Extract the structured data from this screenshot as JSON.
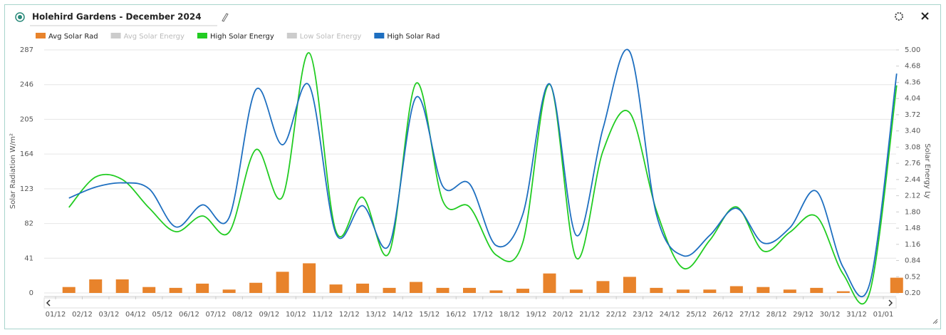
{
  "chart_data": {
    "type": "bar-line",
    "title": "Holehird Gardens - December 2024",
    "y_label": "Solar Radiation W/m²",
    "y2_label": "Solar Energy Ly",
    "categories": [
      "01/12",
      "02/12",
      "03/12",
      "04/12",
      "05/12",
      "06/12",
      "07/12",
      "08/12",
      "09/12",
      "10/12",
      "11/12",
      "12/12",
      "13/12",
      "14/12",
      "15/12",
      "16/12",
      "17/12",
      "18/12",
      "19/12",
      "20/12",
      "21/12",
      "22/12",
      "23/12",
      "24/12",
      "25/12",
      "26/12",
      "27/12",
      "28/12",
      "29/12",
      "30/12",
      "31/12",
      "01/01"
    ],
    "series": [
      {
        "name": "Avg Solar Rad",
        "type": "bar",
        "color": "#e8832b",
        "visible": true,
        "axis": "y",
        "values": [
          7,
          16,
          16,
          7,
          6,
          11,
          4,
          12,
          25,
          35,
          10,
          11,
          6,
          13,
          6,
          6,
          3,
          5,
          23,
          4,
          14,
          19,
          6,
          4,
          4,
          8,
          7,
          4,
          6,
          2,
          0,
          18
        ]
      },
      {
        "name": "Avg Solar Energy",
        "color": "#cccccc",
        "visible": false
      },
      {
        "name": "High Solar Energy",
        "type": "line",
        "color": "#22cc22",
        "visible": true,
        "axis": "y2",
        "values": [
          1.89,
          2.49,
          2.44,
          1.88,
          1.41,
          1.72,
          1.4,
          3.03,
          2.1,
          4.94,
          1.42,
          2.09,
          1.0,
          4.34,
          2.02,
          1.9,
          0.95,
          1.2,
          4.32,
          0.89,
          3.0,
          3.76,
          1.83,
          0.69,
          1.24,
          1.9,
          1.03,
          1.4,
          1.71,
          0.57,
          0.23,
          4.3
        ]
      },
      {
        "name": "Low Solar Energy",
        "color": "#cccccc",
        "visible": false
      },
      {
        "name": "High Solar Rad",
        "type": "line",
        "color": "#1e6fc0",
        "visible": true,
        "axis": "y",
        "values": [
          112,
          125,
          130,
          123,
          78,
          104,
          89,
          240,
          175,
          245,
          70,
          103,
          57,
          231,
          126,
          129,
          56,
          93,
          247,
          68,
          194,
          285,
          93,
          44,
          68,
          100,
          59,
          77,
          120,
          30,
          12,
          259
        ]
      }
    ],
    "ylim": [
      0,
      287
    ],
    "yticks": [
      0,
      41,
      82,
      123,
      164,
      205,
      246,
      287
    ],
    "y2lim": [
      0.2,
      5.0
    ],
    "y2ticks": [
      {
        "value": 0.2,
        "label": "0.20"
      },
      {
        "value": 0.52,
        "label": "0.52"
      },
      {
        "value": 0.84,
        "label": "0.84"
      },
      {
        "value": 1.16,
        "label": "1.16"
      },
      {
        "value": 1.48,
        "label": "1.48"
      },
      {
        "value": 1.8,
        "label": "1.80"
      },
      {
        "value": 2.12,
        "label": "2.12"
      },
      {
        "value": 2.44,
        "label": "2.44"
      },
      {
        "value": 2.76,
        "label": "2.76"
      },
      {
        "value": 3.08,
        "label": "3.08"
      },
      {
        "value": 3.4,
        "label": "3.40"
      },
      {
        "value": 3.72,
        "label": "3.72"
      },
      {
        "value": 4.04,
        "label": "4.04"
      },
      {
        "value": 4.36,
        "label": "4.36"
      },
      {
        "value": 4.68,
        "label": "4.68"
      },
      {
        "value": 5.0,
        "label": "5.00"
      }
    ],
    "grid": true
  }
}
